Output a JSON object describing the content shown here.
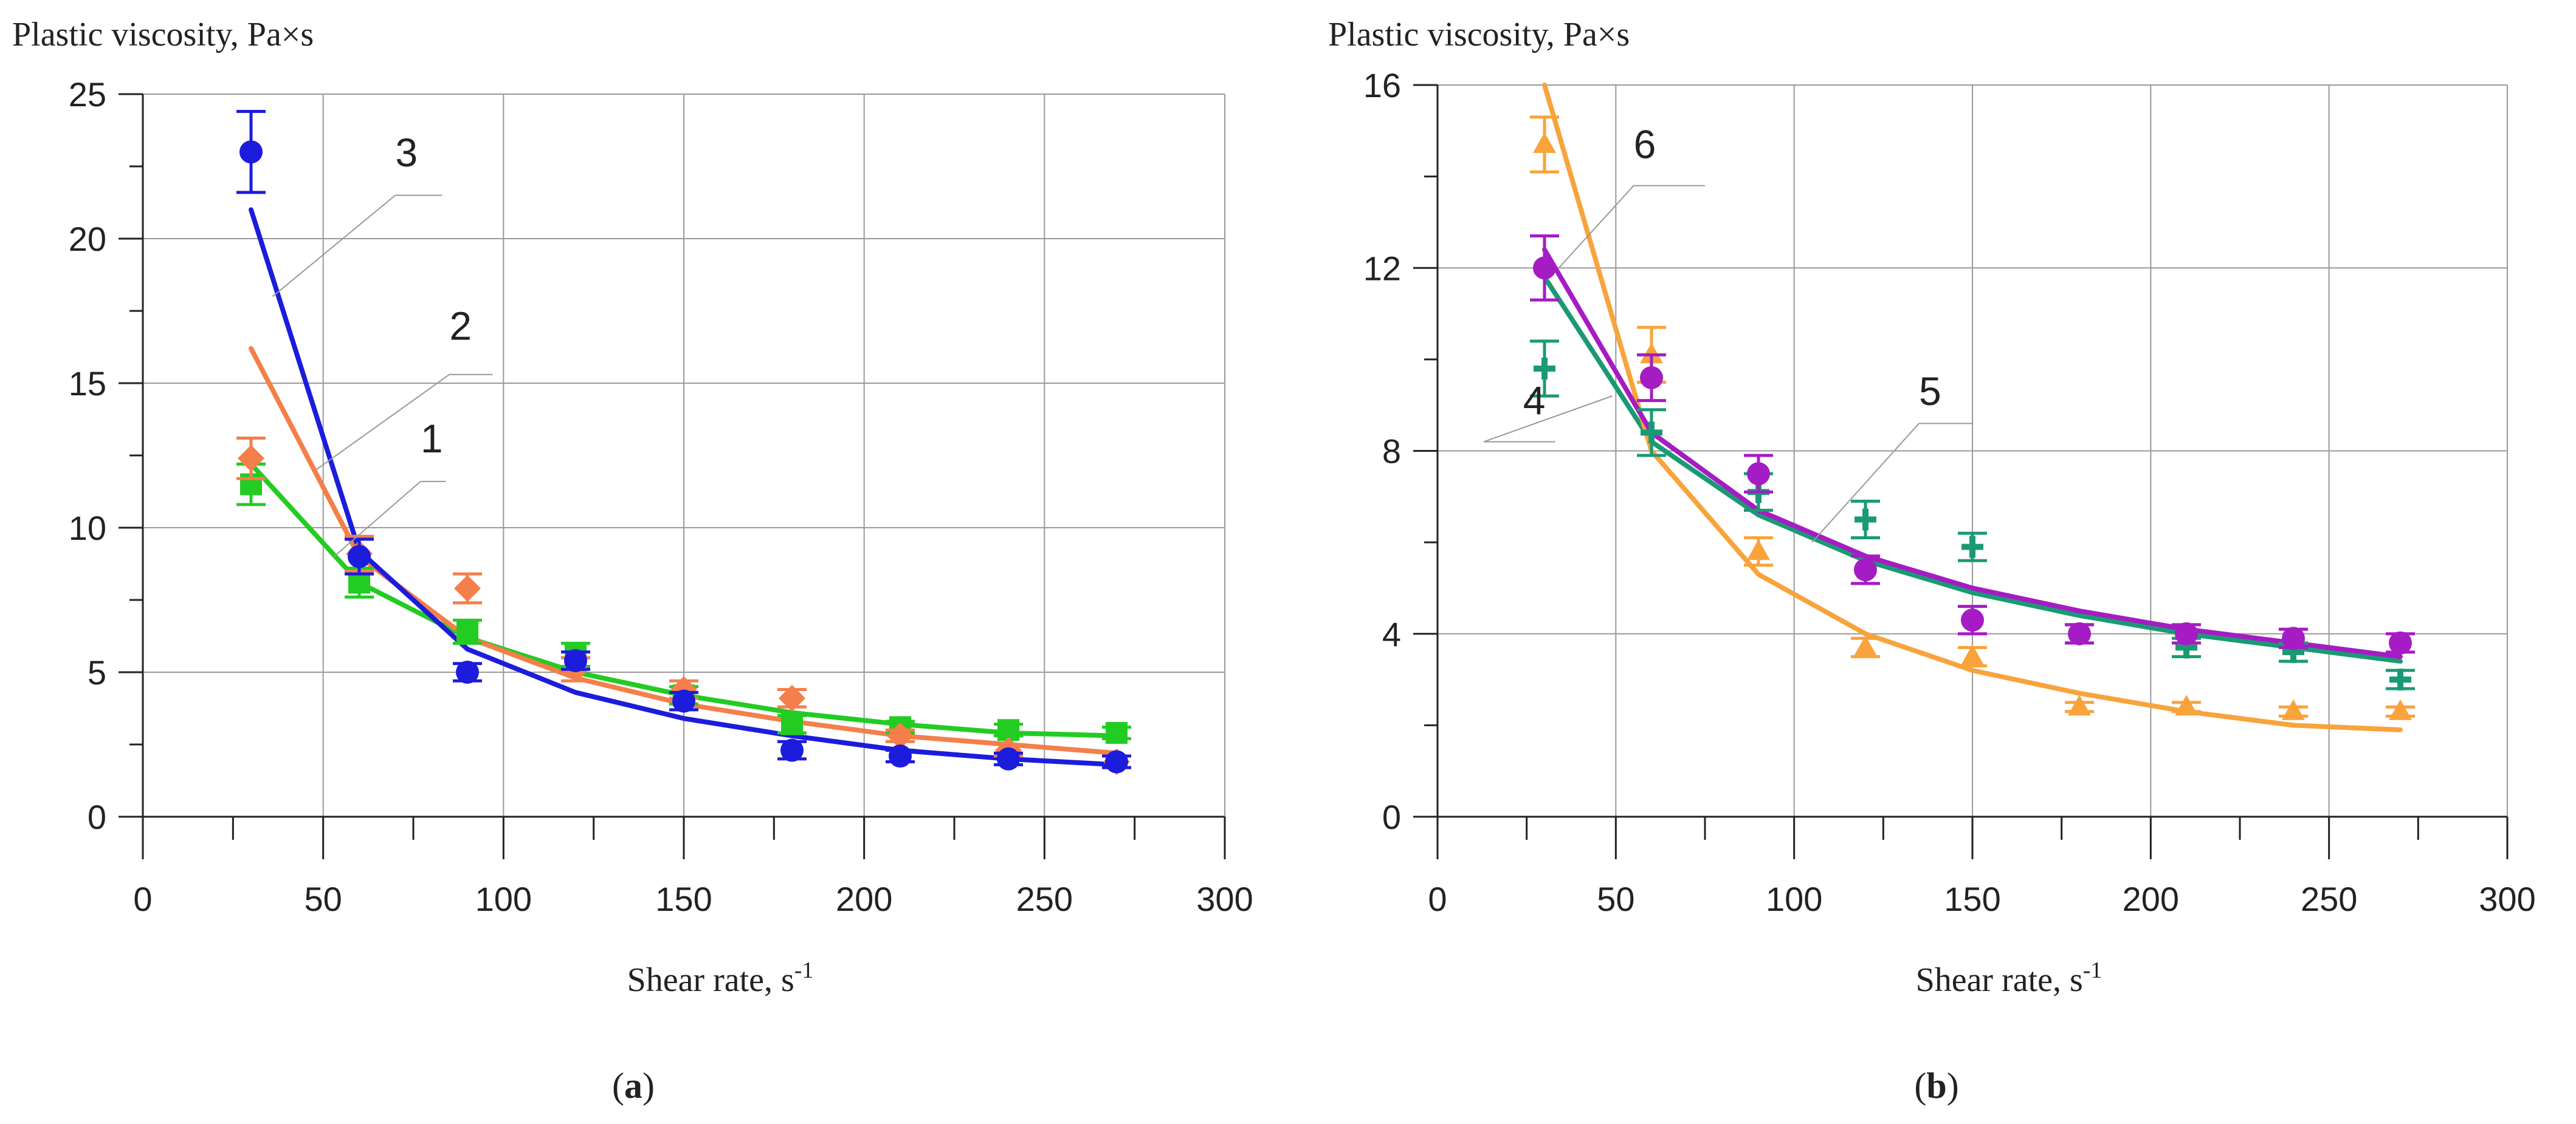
{
  "chart_data": [
    {
      "panel_label": "a",
      "type": "scatter",
      "title": "",
      "ylabel": "Plastic viscosity, Pa×s",
      "xlabel": "Shear rate, s",
      "xlabel_sup": "-1",
      "xlim": [
        0,
        300
      ],
      "ylim": [
        0,
        25
      ],
      "xticks": [
        0,
        50,
        100,
        150,
        200,
        250,
        300
      ],
      "yticks": [
        0,
        5,
        10,
        15,
        20,
        25
      ],
      "grid": true,
      "series": [
        {
          "name": "1",
          "color": "#22cc22",
          "marker": "square",
          "x": [
            30,
            60,
            90,
            120,
            150,
            180,
            210,
            240,
            270
          ],
          "y": [
            11.5,
            8.1,
            6.4,
            5.6,
            4.2,
            3.2,
            3.1,
            3.0,
            2.9
          ],
          "err": [
            0.7,
            0.5,
            0.4,
            0.4,
            0.3,
            0.3,
            0.2,
            0.2,
            0.2
          ],
          "fit_y": [
            12.2,
            8.1,
            6.2,
            5.0,
            4.2,
            3.6,
            3.2,
            2.9,
            2.8
          ]
        },
        {
          "name": "2",
          "color": "#f47f4a",
          "marker": "diamond",
          "x": [
            30,
            60,
            90,
            120,
            150,
            180,
            210,
            240,
            270
          ],
          "y": [
            12.4,
            9.1,
            7.9,
            5.1,
            4.4,
            4.1,
            2.8,
            2.3,
            1.9
          ],
          "err": [
            0.7,
            0.6,
            0.5,
            0.4,
            0.3,
            0.3,
            0.2,
            0.2,
            0.2
          ],
          "fit_y": [
            16.2,
            9.0,
            6.2,
            4.8,
            3.9,
            3.3,
            2.8,
            2.5,
            2.2
          ]
        },
        {
          "name": "3",
          "color": "#1c1cdc",
          "marker": "circle",
          "x": [
            30,
            60,
            90,
            120,
            150,
            180,
            210,
            240,
            270
          ],
          "y": [
            23.0,
            9.0,
            5.0,
            5.4,
            4.0,
            2.3,
            2.1,
            2.0,
            1.9
          ],
          "err": [
            1.4,
            0.6,
            0.3,
            0.3,
            0.3,
            0.3,
            0.2,
            0.2,
            0.2
          ],
          "fit_y": [
            21.0,
            9.2,
            5.8,
            4.3,
            3.4,
            2.8,
            2.3,
            2.0,
            1.8
          ]
        }
      ],
      "annotations": [
        {
          "text": "3",
          "x": 70,
          "y": 22.5,
          "leader_x": [
            70,
            83
          ],
          "leader_y": [
            21.5,
            21.5
          ],
          "leader_to_x": 36,
          "leader_to_y": 18
        },
        {
          "text": "2",
          "x": 85,
          "y": 16.5,
          "leader_x": [
            85,
            97
          ],
          "leader_y": [
            15.3,
            15.3
          ],
          "leader_to_x": 48,
          "leader_to_y": 12
        },
        {
          "text": "1",
          "x": 77,
          "y": 12.6,
          "leader_x": [
            77,
            84
          ],
          "leader_y": [
            11.6,
            11.6
          ],
          "leader_to_x": 53,
          "leader_to_y": 9
        }
      ]
    },
    {
      "panel_label": "b",
      "type": "scatter",
      "title": "",
      "ylabel": "Plastic viscosity, Pa×s",
      "xlabel": "Shear rate, s",
      "xlabel_sup": "-1",
      "xlim": [
        0,
        300
      ],
      "ylim": [
        0,
        16
      ],
      "xticks": [
        0,
        50,
        100,
        150,
        200,
        250,
        300
      ],
      "yticks": [
        0,
        4,
        8,
        12,
        16
      ],
      "grid": true,
      "series": [
        {
          "name": "4",
          "color": "#1a9a74",
          "marker": "cross",
          "x": [
            30,
            60,
            90,
            120,
            150,
            180,
            210,
            240,
            270
          ],
          "y": [
            9.8,
            8.4,
            7.1,
            6.5,
            5.9,
            4.0,
            3.7,
            3.6,
            3.0
          ],
          "err": [
            0.6,
            0.5,
            0.4,
            0.4,
            0.3,
            0.2,
            0.2,
            0.2,
            0.2
          ],
          "fit_y": [
            11.8,
            8.2,
            6.6,
            5.6,
            4.9,
            4.4,
            4.0,
            3.7,
            3.4
          ]
        },
        {
          "name": "5",
          "color": "#f9a33c",
          "marker": "triangle",
          "x": [
            30,
            60,
            90,
            120,
            150,
            180,
            210,
            240,
            270
          ],
          "y": [
            14.7,
            10.1,
            5.8,
            3.7,
            3.5,
            2.4,
            2.4,
            2.3,
            2.3
          ],
          "err": [
            0.6,
            0.6,
            0.3,
            0.2,
            0.2,
            0.1,
            0.1,
            0.1,
            0.1
          ],
          "fit_y": [
            16.0,
            8.0,
            5.3,
            4.0,
            3.2,
            2.7,
            2.3,
            2.0,
            1.9
          ]
        },
        {
          "name": "6",
          "color": "#a51cc4",
          "marker": "circle",
          "x": [
            30,
            60,
            90,
            120,
            150,
            180,
            210,
            240,
            270
          ],
          "y": [
            12.0,
            9.6,
            7.5,
            5.4,
            4.3,
            4.0,
            4.0,
            3.9,
            3.8
          ],
          "err": [
            0.7,
            0.5,
            0.4,
            0.3,
            0.3,
            0.2,
            0.2,
            0.2,
            0.2
          ],
          "fit_y": [
            12.4,
            8.4,
            6.7,
            5.7,
            5.0,
            4.5,
            4.1,
            3.8,
            3.5
          ]
        }
      ],
      "annotations": [
        {
          "text": "6",
          "x": 55,
          "y": 14.4,
          "leader_x": [
            55,
            75
          ],
          "leader_y": [
            13.8,
            13.8
          ],
          "leader_to_x": 34,
          "leader_to_y": 12
        },
        {
          "text": "4",
          "x": 24,
          "y": 8.8,
          "leader_x": [
            13,
            33
          ],
          "leader_y": [
            8.2,
            8.2
          ],
          "leader_to_x": 49,
          "leader_to_y": 9.2
        },
        {
          "text": "5",
          "x": 135,
          "y": 9.0,
          "leader_x": [
            135,
            150
          ],
          "leader_y": [
            8.6,
            8.6
          ],
          "leader_to_x": 105,
          "leader_to_y": 6.0
        }
      ]
    }
  ]
}
